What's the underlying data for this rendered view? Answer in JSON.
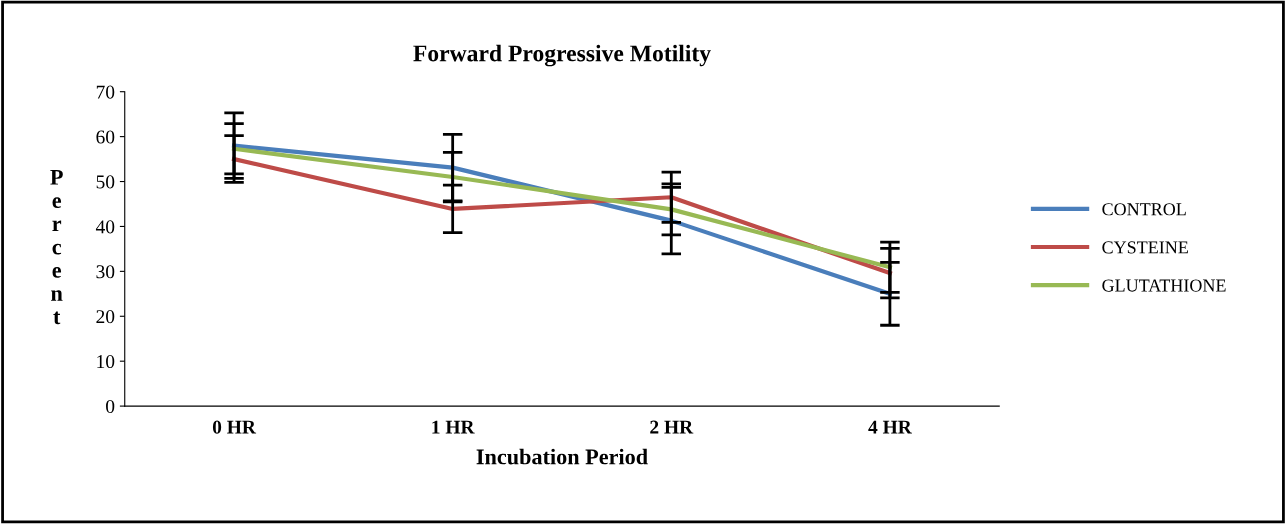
{
  "chart_data": {
    "type": "line",
    "title": "Forward Progressive Motility",
    "xlabel": "Incubation Period",
    "ylabel": "Percent",
    "categories": [
      "0 HR",
      "1 HR",
      "2 HR",
      "4 HR"
    ],
    "series": [
      {
        "name": "CONTROL",
        "color": "#4a7ebb",
        "values": [
          58,
          53.1,
          41.3,
          25
        ],
        "errors": [
          7.3,
          7.4,
          7.4,
          7
        ]
      },
      {
        "name": "CYSTEINE",
        "color": "#be4b48",
        "values": [
          55,
          43.9,
          46.5,
          29.6
        ],
        "errors": [
          5.2,
          5.3,
          5.6,
          5.5
        ]
      },
      {
        "name": "GLUTATHIONE",
        "color": "#98b954",
        "values": [
          57.3,
          51,
          43.8,
          30.9
        ],
        "errors": [
          5.6,
          5.5,
          5.7,
          5.6
        ]
      }
    ],
    "ylim": [
      0,
      70
    ],
    "yticks": [
      0,
      10,
      20,
      30,
      40,
      50,
      60,
      70
    ],
    "grid": false,
    "legend": "right",
    "marker": "none",
    "line_style": "solid"
  }
}
